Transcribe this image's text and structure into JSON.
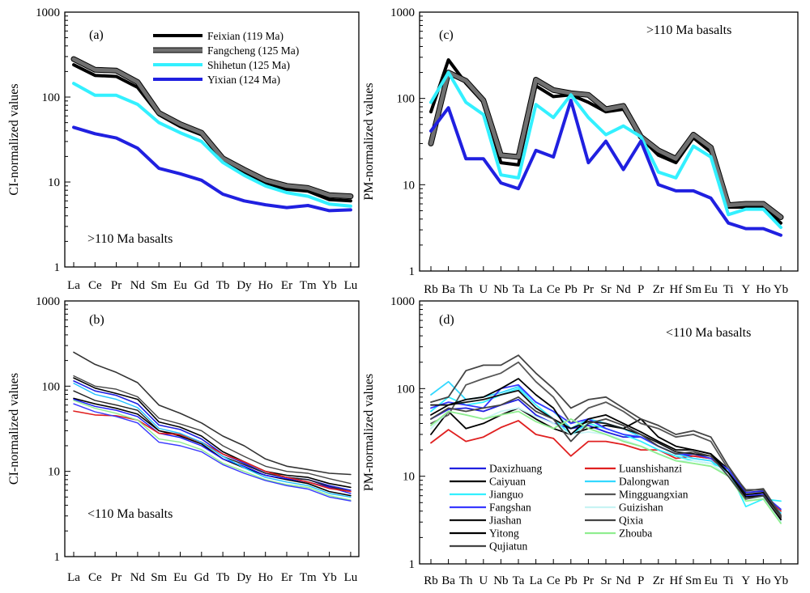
{
  "figure": {
    "background": "#ffffff"
  },
  "chart_data": [
    {
      "id": "a",
      "type": "line",
      "panel_label": "(a)",
      "annotation": ">110 Ma  basalts",
      "ylabel": "CI-normalized values",
      "xlabel": "",
      "yscale": "log",
      "ylim": [
        1,
        1000
      ],
      "yticks": [
        "1",
        "10",
        "100",
        "1000"
      ],
      "grid": false,
      "legend_position": "top-right",
      "categories": [
        "La",
        "Ce",
        "Pr",
        "Nd",
        "Sm",
        "Eu",
        "Gd",
        "Tb",
        "Dy",
        "Ho",
        "Er",
        "Tm",
        "Yb",
        "Lu"
      ],
      "series": [
        {
          "name": "Feixian (119 Ma)",
          "color": "#000000",
          "width": 4,
          "values": [
            240,
            180,
            175,
            130,
            62,
            45,
            36,
            18,
            13,
            9.5,
            8.2,
            7.8,
            6.2,
            6.0
          ]
        },
        {
          "name": "Fangcheng (125 Ma)",
          "color": "#707070",
          "outline": "#000000",
          "width": 5,
          "values": [
            280,
            210,
            205,
            150,
            65,
            48,
            38,
            19,
            14,
            10.5,
            9.0,
            8.5,
            7.0,
            6.8
          ]
        },
        {
          "name": "Shihetun (125 Ma)",
          "color": "#33f0ff",
          "width": 4,
          "values": [
            145,
            105,
            105,
            82,
            50,
            38,
            30,
            17,
            12,
            9.0,
            7.5,
            6.8,
            5.5,
            5.2
          ]
        },
        {
          "name": "Yixian (124 Ma)",
          "color": "#2020e0",
          "width": 4,
          "values": [
            44,
            37,
            33,
            25,
            14.5,
            12.5,
            10.5,
            7.2,
            6.0,
            5.4,
            5.0,
            5.3,
            4.6,
            4.7
          ]
        }
      ]
    },
    {
      "id": "b",
      "type": "line",
      "panel_label": "(b)",
      "annotation": "<110 Ma basalts",
      "ylabel": "CI-normalized values",
      "xlabel": "",
      "yscale": "log",
      "ylim": [
        1,
        1000
      ],
      "yticks": [
        "1",
        "10",
        "100",
        "1000"
      ],
      "grid": false,
      "categories": [
        "La",
        "Ce",
        "Pr",
        "Nd",
        "Sm",
        "Eu",
        "Gd",
        "Tb",
        "Dy",
        "Ho",
        "Er",
        "Tm",
        "Yb",
        "Lu"
      ],
      "series": [
        {
          "color": "#333333",
          "width": 1.6,
          "values": [
            250,
            180,
            145,
            110,
            60,
            48,
            37,
            26,
            20,
            14,
            11.5,
            10.5,
            9.5,
            9.2
          ]
        },
        {
          "color": "#444444",
          "width": 1.4,
          "values": [
            132,
            100,
            92,
            75,
            42,
            36,
            30,
            20,
            15,
            11.5,
            10,
            9.5,
            8.2,
            7.2
          ]
        },
        {
          "color": "#2020e0",
          "width": 1.6,
          "values": [
            115,
            88,
            78,
            62,
            35,
            31,
            24,
            16,
            12.5,
            9.5,
            8.5,
            8.0,
            6.8,
            6.0
          ]
        },
        {
          "color": "#000000",
          "width": 1.6,
          "values": [
            125,
            95,
            82,
            70,
            38,
            33,
            26,
            17,
            13,
            10,
            9,
            8.5,
            7.2,
            6.5
          ]
        },
        {
          "color": "#222222",
          "width": 1.4,
          "values": [
            88,
            68,
            60,
            52,
            30,
            27,
            22,
            15,
            12,
            9.5,
            8.5,
            8.0,
            6.6,
            5.8
          ]
        },
        {
          "color": "#000000",
          "width": 1.6,
          "values": [
            72,
            62,
            55,
            47,
            30,
            26,
            21,
            14,
            11,
            9.0,
            8.0,
            7.2,
            5.8,
            5.2
          ]
        },
        {
          "color": "#1a1aff",
          "width": 1.4,
          "values": [
            70,
            58,
            52,
            44,
            28,
            25,
            20,
            14,
            11.5,
            9.0,
            8.2,
            7.5,
            6.5,
            5.5
          ]
        },
        {
          "color": "#e02020",
          "width": 1.6,
          "values": [
            51,
            46,
            45,
            40,
            28,
            27,
            22,
            16,
            13,
            10,
            8.5,
            7.5,
            6.3,
            5.8
          ]
        },
        {
          "color": "#20c0ff",
          "width": 1.4,
          "values": [
            108,
            80,
            70,
            56,
            32,
            28,
            22,
            15,
            11,
            8.5,
            7.5,
            6.8,
            5.5,
            5.0
          ]
        },
        {
          "color": "#90ee90",
          "width": 1.4,
          "values": [
            68,
            55,
            48,
            40,
            24,
            22,
            18,
            12.5,
            10,
            8.0,
            7.0,
            6.5,
            5.2,
            4.6
          ]
        },
        {
          "color": "#3838ff",
          "width": 1.4,
          "values": [
            62,
            50,
            44,
            37,
            22,
            20,
            17,
            12,
            9.5,
            7.8,
            6.8,
            6.2,
            5.0,
            4.5
          ]
        }
      ]
    },
    {
      "id": "c",
      "type": "line",
      "panel_label": "(c)",
      "annotation": ">110 Ma basalts",
      "ylabel": "PM-normalized values",
      "xlabel": "",
      "yscale": "log",
      "ylim": [
        1,
        1000
      ],
      "yticks": [
        "1",
        "10",
        "100",
        "1000"
      ],
      "grid": false,
      "categories": [
        "Rb",
        "Ba",
        "Th",
        "U",
        "Nb",
        "Ta",
        "La",
        "Ce",
        "Pb",
        "Pr",
        "Sr",
        "Nd",
        "P",
        "Zr",
        "Hf",
        "Sm",
        "Eu",
        "Ti",
        "Y",
        "Ho",
        "Yb"
      ],
      "series": [
        {
          "color": "#000000",
          "width": 4,
          "values": [
            70,
            280,
            150,
            90,
            18,
            17,
            140,
            105,
            110,
            90,
            70,
            75,
            35,
            22,
            18,
            35,
            24,
            5.5,
            5.5,
            5.5,
            3.6
          ]
        },
        {
          "color": "#707070",
          "outline": "#000000",
          "width": 5,
          "values": [
            30,
            200,
            160,
            95,
            22,
            21,
            165,
            125,
            115,
            110,
            75,
            82,
            36,
            25,
            20,
            38,
            27,
            5.8,
            6.0,
            6.0,
            4.2
          ]
        },
        {
          "color": "#33f0ff",
          "width": 4,
          "values": [
            90,
            200,
            90,
            65,
            13,
            12,
            85,
            60,
            110,
            60,
            38,
            48,
            36,
            14,
            12,
            28,
            21,
            4.5,
            5.2,
            5.2,
            3.2
          ]
        },
        {
          "color": "#2020e0",
          "width": 4,
          "values": [
            42,
            78,
            20,
            20,
            10.5,
            9,
            25,
            21,
            95,
            18,
            32,
            15,
            32,
            10,
            8.5,
            8.5,
            7,
            3.6,
            3.1,
            3.1,
            2.6
          ]
        }
      ]
    },
    {
      "id": "d",
      "type": "line",
      "panel_label": "(d)",
      "annotation": "<110 Ma basalts",
      "ylabel": "PM-normalized values",
      "xlabel": "",
      "yscale": "log",
      "ylim": [
        1,
        1000
      ],
      "yticks": [
        "1",
        "10",
        "100",
        "1000"
      ],
      "grid": false,
      "legend_position": "bottom-left",
      "categories": [
        "Rb",
        "Ba",
        "Th",
        "U",
        "Nb",
        "Ta",
        "La",
        "Ce",
        "Pb",
        "Pr",
        "Sr",
        "Nd",
        "P",
        "Zr",
        "Hf",
        "Sm",
        "Eu",
        "Ti",
        "Y",
        "Ho",
        "Yb"
      ],
      "series": [
        {
          "name": "Daxizhuang",
          "color": "#2020e0",
          "width": 1.8,
          "values": [
            45,
            58,
            60,
            55,
            65,
            75,
            50,
            40,
            35,
            38,
            32,
            28,
            28,
            22,
            18,
            17,
            16,
            12,
            6.5,
            6.8,
            3.2
          ]
        },
        {
          "name": "Luanshishanzi",
          "color": "#e02020",
          "width": 1.8,
          "values": [
            24,
            34,
            25,
            28,
            36,
            43,
            30,
            27,
            17,
            25,
            25,
            23,
            20,
            20,
            16,
            17,
            16,
            11,
            6.0,
            6.2,
            4.0
          ]
        },
        {
          "name": "Caiyuan",
          "color": "#000000",
          "width": 1.8,
          "values": [
            30,
            55,
            35,
            40,
            50,
            60,
            45,
            35,
            30,
            35,
            38,
            35,
            45,
            28,
            22,
            20,
            18,
            12,
            6.0,
            6.5,
            3.5
          ]
        },
        {
          "name": "Dalongwan",
          "color": "#33d8ff",
          "width": 1.8,
          "values": [
            85,
            120,
            75,
            80,
            90,
            105,
            70,
            55,
            35,
            45,
            40,
            35,
            28,
            22,
            18,
            16,
            15,
            11,
            5.5,
            6.0,
            3.8
          ]
        },
        {
          "name": "Jianguo",
          "color": "#33f0ff",
          "width": 1.8,
          "values": [
            55,
            80,
            65,
            70,
            85,
            100,
            65,
            45,
            30,
            40,
            35,
            30,
            25,
            20,
            17,
            15,
            14,
            12,
            4.5,
            5.5,
            5.2
          ]
        },
        {
          "name": "Mingguangxian",
          "color": "#555555",
          "width": 1.8,
          "values": [
            40,
            50,
            110,
            130,
            150,
            200,
            120,
            80,
            40,
            60,
            70,
            55,
            40,
            35,
            28,
            30,
            25,
            12,
            7.0,
            7.0,
            3.3
          ]
        },
        {
          "name": "Fangshan",
          "color": "#3838ff",
          "width": 1.8,
          "values": [
            60,
            70,
            65,
            60,
            100,
            110,
            70,
            55,
            40,
            45,
            35,
            30,
            28,
            22,
            18,
            18,
            16,
            12,
            6.0,
            6.2,
            4.2
          ]
        },
        {
          "name": "Guizishan",
          "color": "#c8f4f4",
          "width": 1.8,
          "values": [
            35,
            55,
            50,
            45,
            55,
            60,
            48,
            40,
            30,
            32,
            30,
            26,
            22,
            18,
            15,
            15,
            14,
            10,
            5.5,
            5.8,
            3.0
          ]
        },
        {
          "name": "Jiashan",
          "color": "#111111",
          "width": 1.8,
          "values": [
            65,
            65,
            70,
            75,
            85,
            95,
            60,
            45,
            35,
            42,
            40,
            35,
            30,
            24,
            19,
            18,
            17,
            11,
            6.2,
            6.5,
            3.4
          ]
        },
        {
          "name": "Qixia",
          "color": "#444444",
          "width": 1.8,
          "values": [
            70,
            80,
            160,
            185,
            185,
            240,
            150,
            100,
            60,
            75,
            80,
            60,
            45,
            38,
            30,
            33,
            28,
            13,
            6.8,
            7.2,
            3.6
          ]
        },
        {
          "name": "Yitong",
          "color": "#000000",
          "width": 1.8,
          "values": [
            50,
            65,
            75,
            80,
            100,
            130,
            85,
            60,
            30,
            45,
            50,
            40,
            32,
            25,
            20,
            20,
            18,
            11,
            5.8,
            6.0,
            3.2
          ]
        },
        {
          "name": "Zhouba",
          "color": "#90ee90",
          "width": 1.8,
          "values": [
            38,
            55,
            50,
            45,
            50,
            55,
            42,
            35,
            45,
            35,
            30,
            25,
            22,
            18,
            15,
            14,
            13,
            10,
            5.2,
            5.5,
            2.9
          ]
        },
        {
          "name": "Qujiatun",
          "color": "#444444",
          "width": 1.8,
          "values": [
            45,
            60,
            55,
            60,
            65,
            80,
            55,
            45,
            25,
            40,
            45,
            38,
            30,
            22,
            18,
            19,
            17,
            10,
            5.5,
            6.0,
            3.4
          ]
        }
      ]
    }
  ]
}
